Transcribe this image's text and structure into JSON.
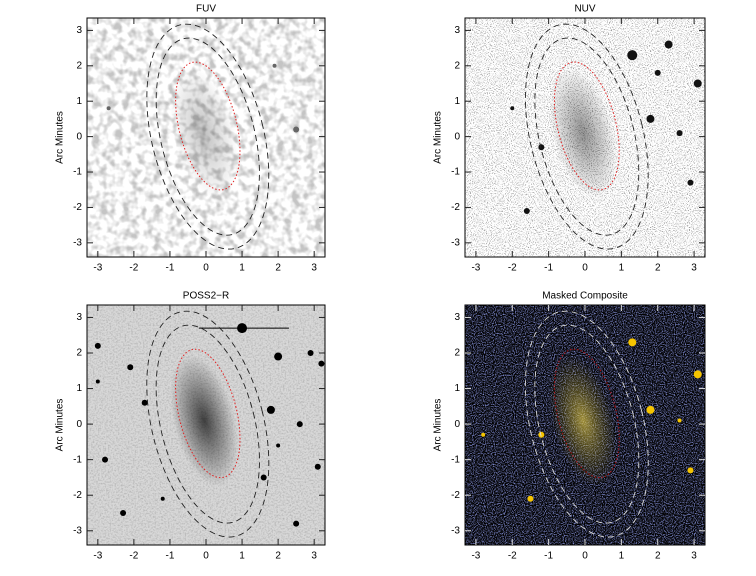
{
  "chart_data": [
    {
      "type": "image",
      "title": "FUV",
      "ylabel": "Arc Minutes",
      "xlim": [
        -3.3,
        3.3
      ],
      "ylim": [
        -3.4,
        3.35
      ],
      "xticks": [
        -3,
        -2,
        -1,
        0,
        1,
        2,
        3
      ],
      "yticks": [
        -3,
        -2,
        -1,
        0,
        1,
        2,
        3
      ]
    },
    {
      "type": "image",
      "title": "NUV",
      "ylabel": "Arc Minutes",
      "xlim": [
        -3.3,
        3.3
      ],
      "ylim": [
        -3.4,
        3.35
      ],
      "xticks": [
        -3,
        -2,
        -1,
        0,
        1,
        2,
        3
      ],
      "yticks": [
        -3,
        -2,
        -1,
        0,
        1,
        2,
        3
      ]
    },
    {
      "type": "image",
      "title": "POSS2−R",
      "ylabel": "Arc Minutes",
      "xlim": [
        -3.3,
        3.3
      ],
      "ylim": [
        -3.4,
        3.35
      ],
      "xticks": [
        -3,
        -2,
        -1,
        0,
        1,
        2,
        3
      ],
      "yticks": [
        -3,
        -2,
        -1,
        0,
        1,
        2,
        3
      ]
    },
    {
      "type": "image",
      "title": "Masked Composite",
      "ylabel": "Arc Minutes",
      "xlim": [
        -3.3,
        3.3
      ],
      "ylim": [
        -3.4,
        3.35
      ],
      "xticks": [
        -3,
        -2,
        -1,
        0,
        1,
        2,
        3
      ],
      "yticks": [
        -3,
        -2,
        -1,
        0,
        1,
        2,
        3
      ]
    }
  ]
}
